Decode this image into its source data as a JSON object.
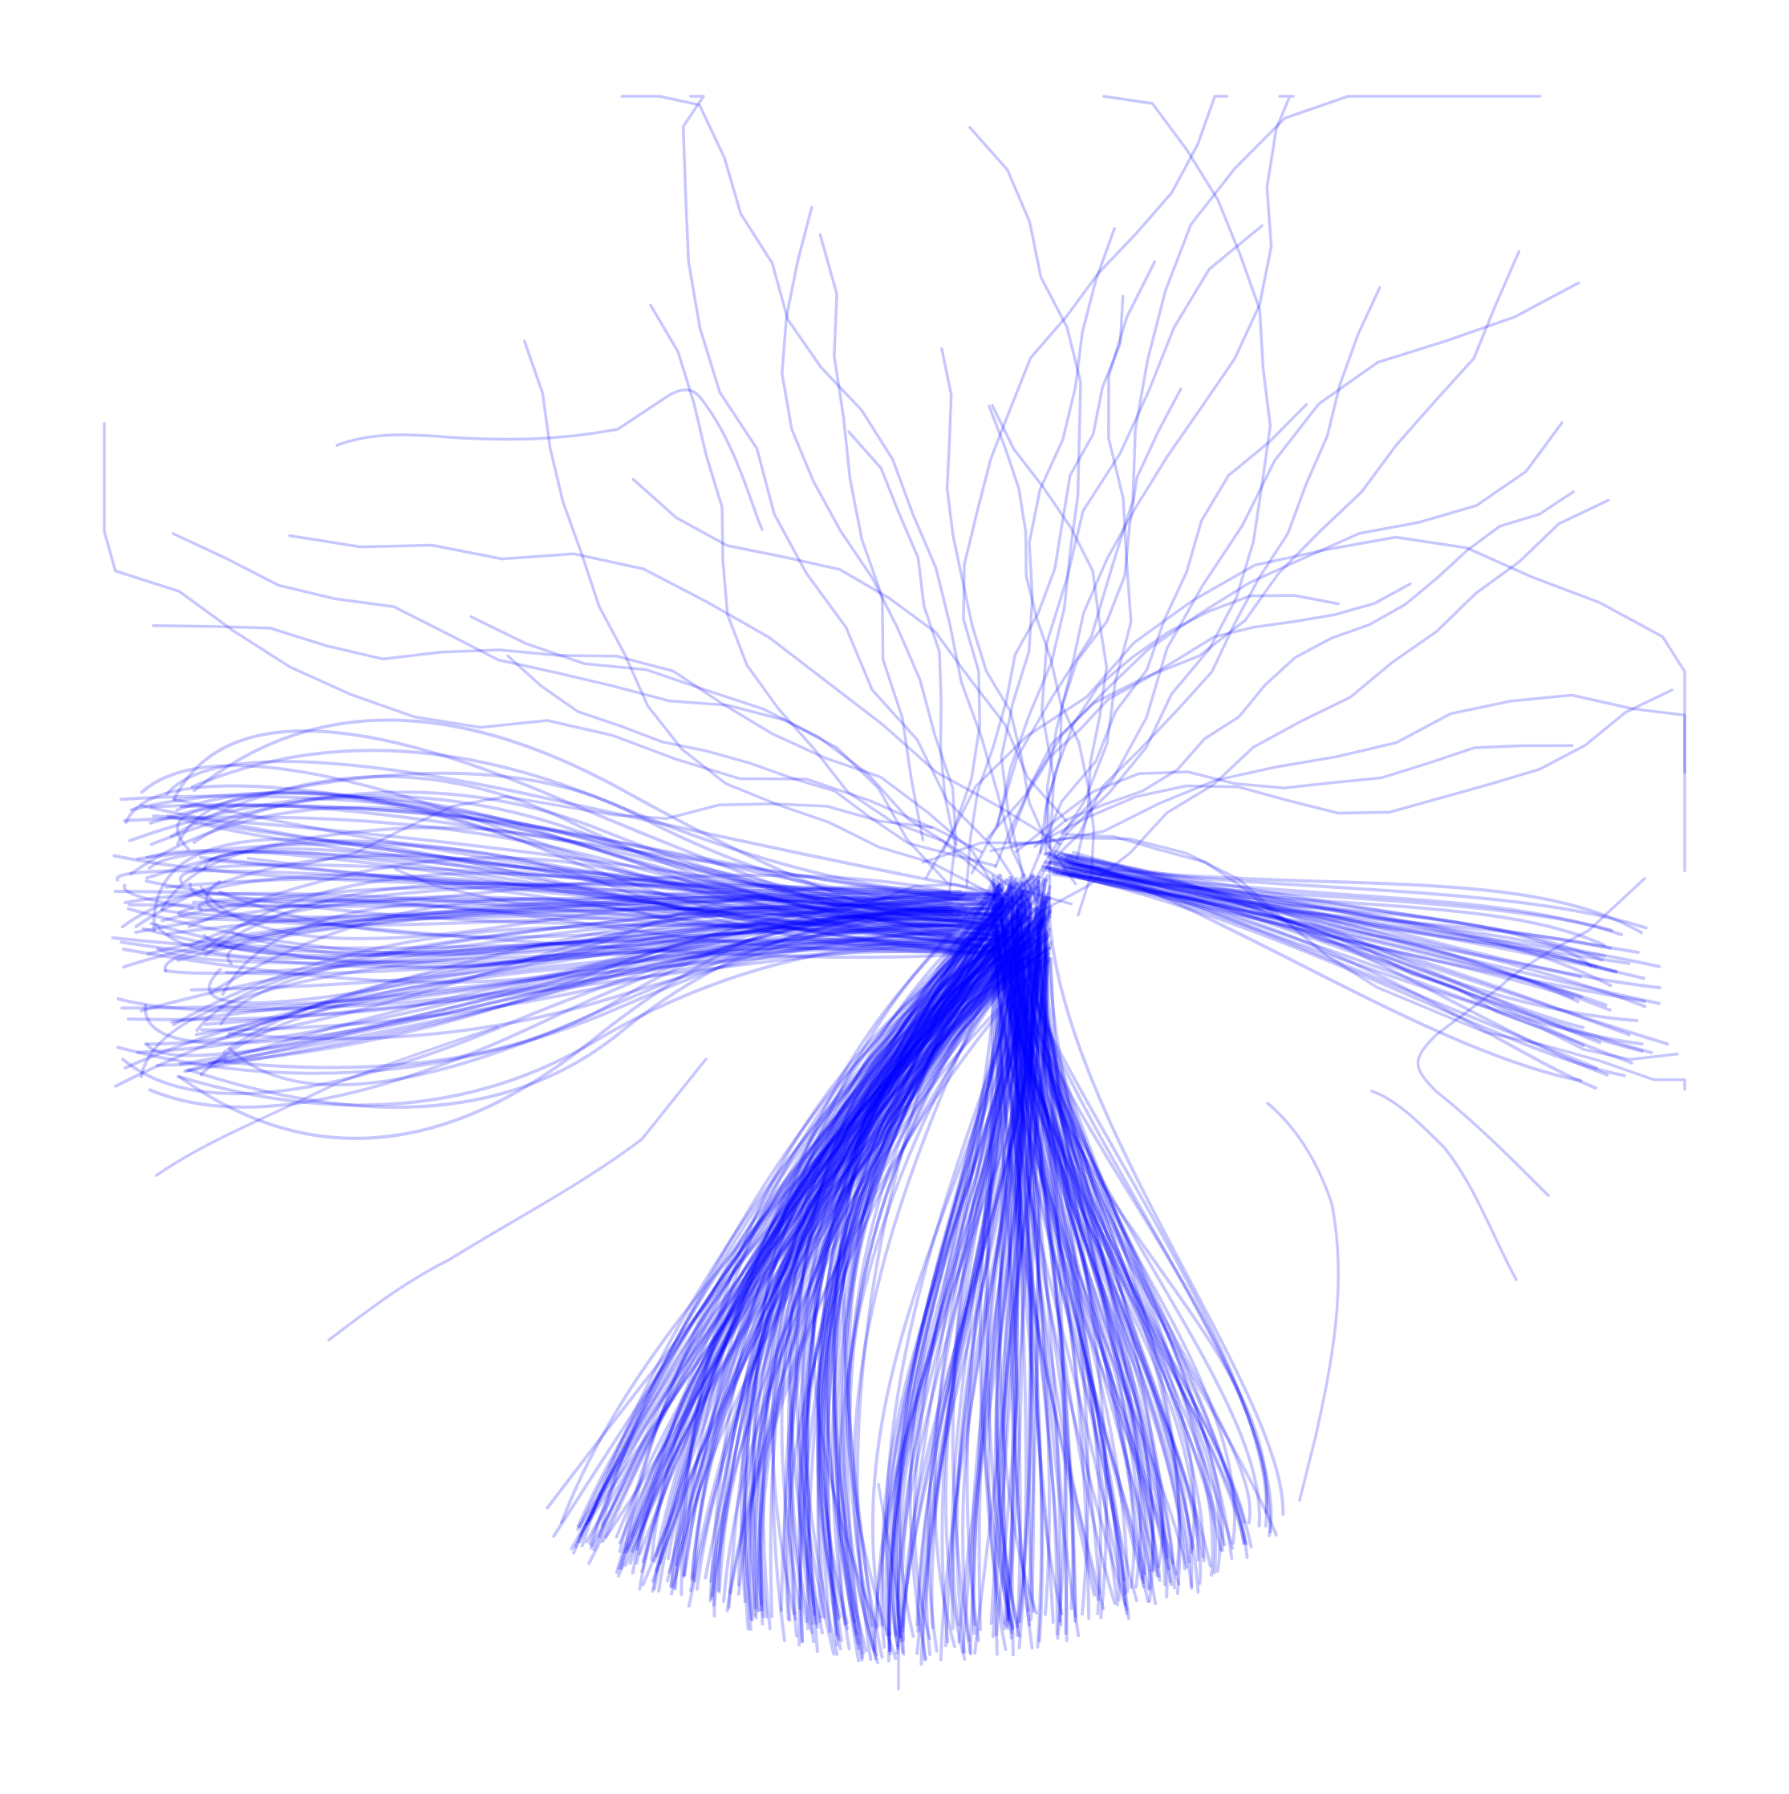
{
  "figure": {
    "description_level": "visual-only",
    "trajectory_color": "#0000ff",
    "background_color": "#ffffff",
    "stroke_opacity": 0.22,
    "bundles": [
      {
        "name": "left-fan",
        "count": 120
      },
      {
        "name": "right-fan",
        "count": 42
      },
      {
        "name": "bottom-fan",
        "count": 340
      }
    ],
    "sparse_upward_paths": 44
  }
}
